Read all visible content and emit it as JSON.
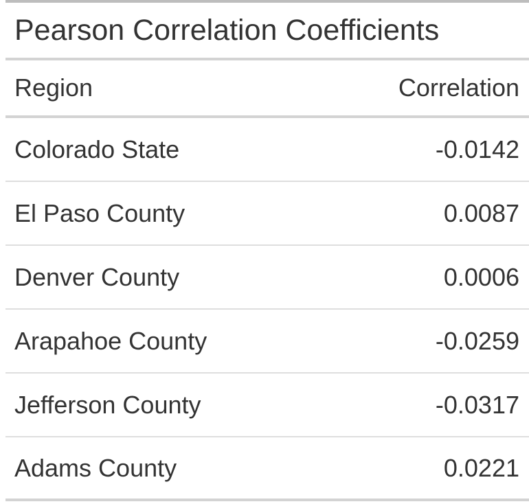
{
  "table": {
    "title": "Pearson Correlation Coefficients",
    "columns": {
      "region": "Region",
      "correlation": "Correlation"
    },
    "rows": [
      {
        "region": "Colorado State",
        "correlation": "-0.0142"
      },
      {
        "region": "El Paso County",
        "correlation": "0.0087"
      },
      {
        "region": "Denver County",
        "correlation": "0.0006"
      },
      {
        "region": "Arapahoe County",
        "correlation": "-0.0259"
      },
      {
        "region": "Jefferson County",
        "correlation": "-0.0317"
      },
      {
        "region": "Adams County",
        "correlation": "0.0221"
      }
    ]
  },
  "colors": {
    "text": "#333333",
    "rule_strong": "#d3d3d3",
    "rule_light": "#dedede",
    "top_border": "#bdbdbd"
  }
}
